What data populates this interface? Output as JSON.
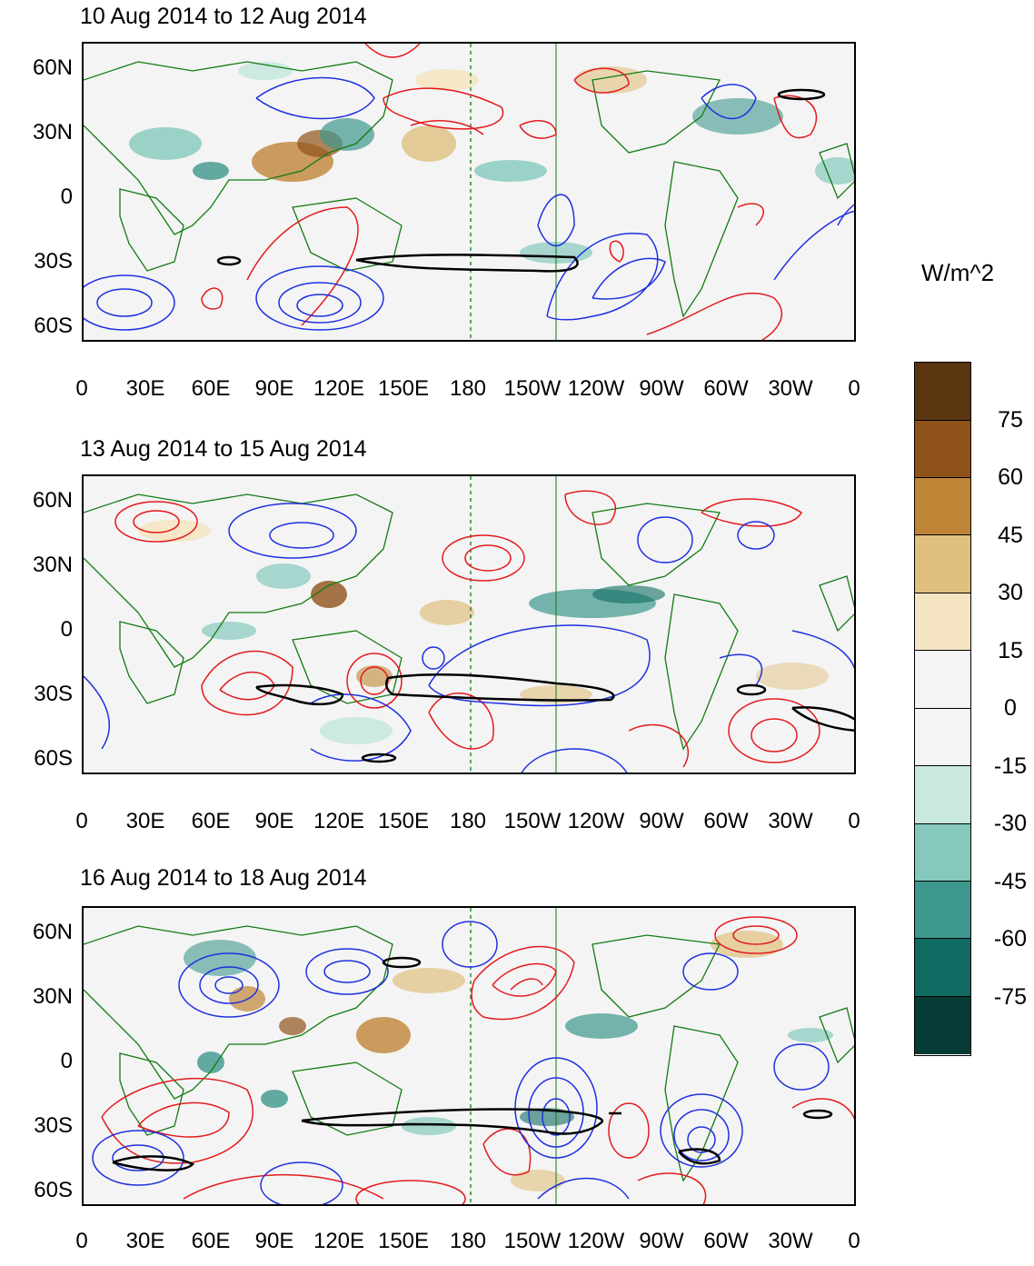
{
  "panels": [
    {
      "title": "10 Aug 2014 to 12 Aug 2014"
    },
    {
      "title": "13 Aug 2014 to 15 Aug 2014"
    },
    {
      "title": "16 Aug 2014 to 18 Aug 2014"
    }
  ],
  "axes": {
    "lat_labels": [
      "60N",
      "30N",
      "0",
      "30S",
      "60S"
    ],
    "lon_labels": [
      "0",
      "30E",
      "60E",
      "90E",
      "120E",
      "150E",
      "180",
      "150W",
      "120W",
      "90W",
      "60W",
      "30W",
      "0"
    ]
  },
  "colorbar": {
    "units": "W/m^2",
    "labels": [
      "75",
      "60",
      "45",
      "30",
      "15",
      "0",
      "-15",
      "-30",
      "-45",
      "-60",
      "-75"
    ],
    "colors": [
      "#5a3510",
      "#8f5219",
      "#bf8536",
      "#dfc07f",
      "#f5e5c2",
      "#f4f4f4",
      "#f4f4f4",
      "#c8e8e0",
      "#85c9bc",
      "#3d978c",
      "#0f6a62",
      "#053d36"
    ]
  },
  "colors": {
    "positive_contour": "#e41a1c",
    "negative_contour": "#1f2fe0",
    "coastline": "#127a12",
    "highlight_contour": "#000000"
  }
}
